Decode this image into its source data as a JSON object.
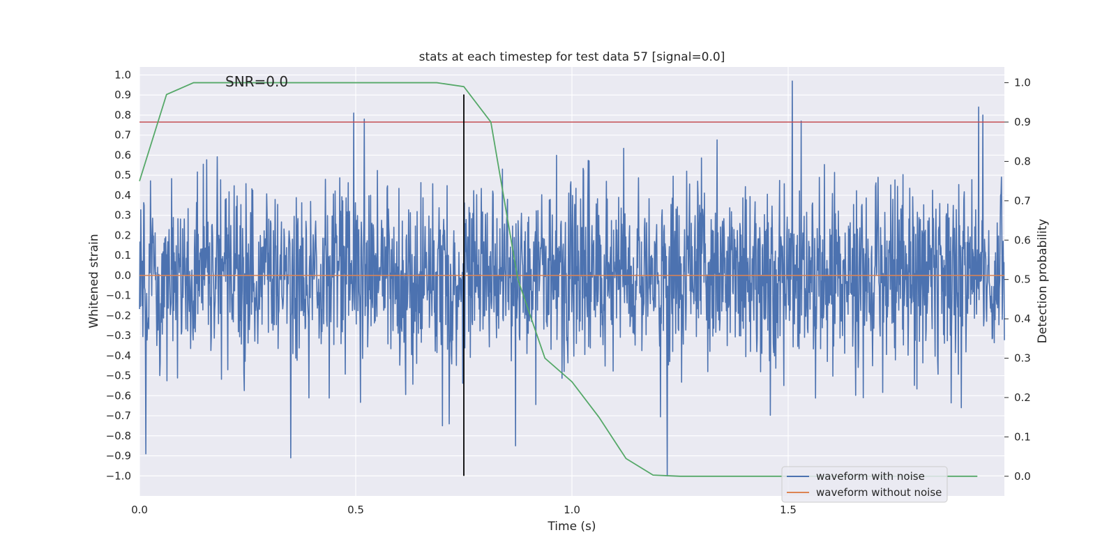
{
  "chart_data": {
    "type": "line",
    "title": "stats at each timestep for test data 57 [signal=0.0]",
    "xlabel": "Time (s)",
    "ylabel": "Whitened strain",
    "y2label": "Detection probability",
    "xlim": [
      0.0,
      2.0
    ],
    "ylim": [
      -1.1,
      1.04
    ],
    "y2lim": [
      -0.05,
      1.04
    ],
    "x_ticks": [
      "0.0",
      "0.5",
      "1.0",
      "1.5"
    ],
    "y_ticks": [
      "1.0",
      "0.9",
      "0.8",
      "0.7",
      "0.6",
      "0.5",
      "0.4",
      "0.3",
      "0.2",
      "0.1",
      "0.0",
      "−0.1",
      "−0.2",
      "−0.3",
      "−0.4",
      "−0.5",
      "−0.6",
      "−0.7",
      "−0.8",
      "−0.9",
      "−1.0"
    ],
    "y2_ticks": [
      "1.0",
      "0.9",
      "0.8",
      "0.7",
      "0.6",
      "0.5",
      "0.4",
      "0.3",
      "0.2",
      "0.1",
      "0.0"
    ],
    "annotation": "SNR=0.0",
    "grid": true,
    "legend_position": "lower-right",
    "series": [
      {
        "name": "waveform with noise",
        "axis": "left",
        "color": "#4c72b0",
        "x_range": [
          0.0,
          2.0
        ],
        "noise_amplitude": 0.3,
        "extremes": [
          [
            0.015,
            -0.89
          ],
          [
            0.35,
            -0.91
          ],
          [
            0.495,
            0.81
          ],
          [
            0.52,
            0.78
          ],
          [
            0.87,
            -0.85
          ],
          [
            1.22,
            -1.0
          ],
          [
            1.51,
            0.97
          ],
          [
            1.94,
            0.84
          ],
          [
            1.9,
            -0.66
          ],
          [
            1.53,
            0.77
          ],
          [
            1.95,
            0.8
          ]
        ]
      },
      {
        "name": "waveform without noise",
        "axis": "left",
        "color": "#dd8452",
        "x": [
          0.0,
          2.0
        ],
        "y": [
          0.0,
          0.0
        ]
      },
      {
        "name": "",
        "axis": "right",
        "color": "#55a868",
        "x": [
          0.0,
          0.0625,
          0.125,
          0.1875,
          0.25,
          0.3125,
          0.375,
          0.4375,
          0.5,
          0.5625,
          0.625,
          0.6875,
          0.75,
          0.8125,
          0.875,
          0.9375,
          1.0,
          1.0625,
          1.125,
          1.1875,
          1.25,
          1.3125,
          1.375,
          1.4375,
          1.5,
          1.5625,
          1.625,
          1.6875,
          1.75,
          1.8125,
          1.875,
          1.9375
        ],
        "y": [
          0.75,
          0.97,
          1.0,
          1.0,
          1.0,
          1.0,
          1.0,
          1.0,
          1.0,
          1.0,
          1.0,
          1.0,
          0.99,
          0.9,
          0.5,
          0.3,
          0.24,
          0.15,
          0.045,
          0.003,
          0.0,
          0.0,
          0.0,
          0.0,
          0.0,
          0.0,
          0.0,
          0.0,
          0.0,
          0.0,
          0.0,
          0.0
        ]
      }
    ],
    "threshold": {
      "axis": "right",
      "value": 0.9,
      "color": "#c44e52"
    },
    "event_marker": {
      "x": 0.75,
      "y_range": [
        -1.0,
        0.97
      ],
      "color": "#000000"
    }
  }
}
